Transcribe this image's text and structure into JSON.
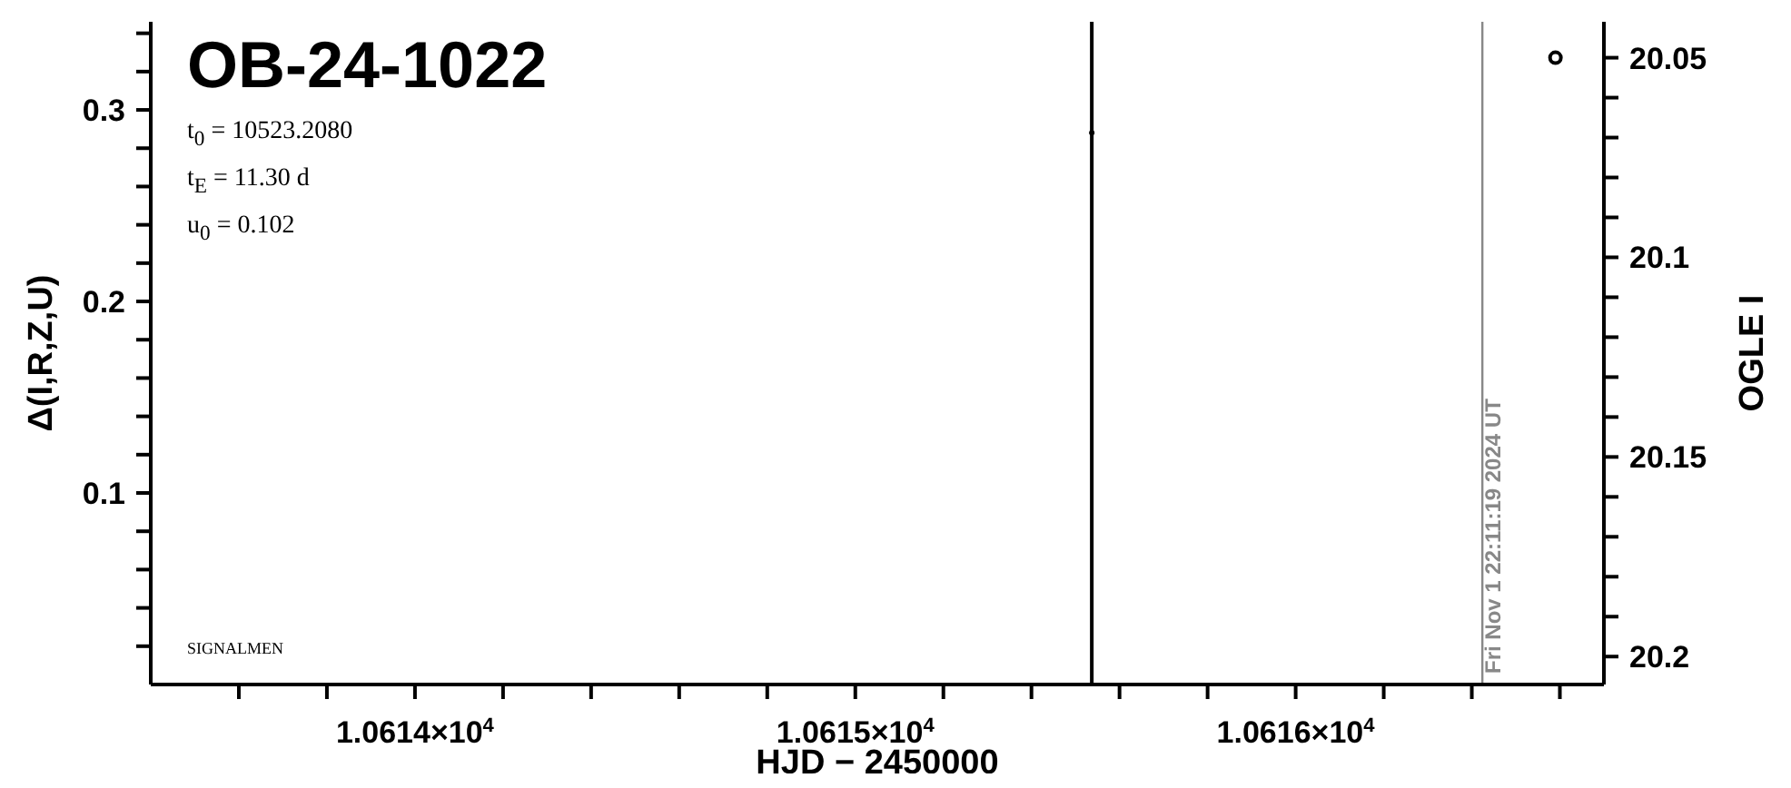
{
  "chart_data": {
    "type": "scatter",
    "title": "OB-24-1022",
    "xlabel": "HJD − 2450000",
    "ylabel": "Δ(I,R,Z,U)",
    "y2label": "OGLE I",
    "annotations": [
      "t$_{0}$ = 10523.2080",
      "t$_{E}$ = 11.30 d",
      "u$_{0}$ = 0.102",
      "SIGNALMEN",
      {
        "text": "Fri Nov  1 22:11:19 2024 UT",
        "x": 10616.424
      }
    ],
    "marker": "circle",
    "series": [
      {
        "color": "#000000",
        "x": [
          10615.537
        ],
        "values": [
          0.288
        ]
      },
      {
        "color": "#000000",
        "axis": "y2",
        "x": [
          10616.59
        ],
        "values": [
          20.05
        ]
      }
    ],
    "xlim": [
      10613.4,
      10616.7
    ],
    "xticks": [
      {
        "value": 10613.6,
        "label": null
      },
      {
        "value": 10613.8,
        "label": null
      },
      {
        "value": 10614,
        "label": "1.0614×10$^{4}$"
      },
      {
        "value": 10614.2,
        "label": null
      },
      {
        "value": 10614.4,
        "label": null
      },
      {
        "value": 10614.6,
        "label": null
      },
      {
        "value": 10614.8,
        "label": null
      },
      {
        "value": 10615,
        "label": "1.0615×10$^{4}$"
      },
      {
        "value": 10615.2,
        "label": null
      },
      {
        "value": 10615.4,
        "label": null
      },
      {
        "value": 10615.6,
        "label": null
      },
      {
        "value": 10615.8,
        "label": null
      },
      {
        "value": 10616,
        "label": "1.0616×10$^{4}$"
      },
      {
        "value": 10616.2,
        "label": null
      },
      {
        "value": 10616.4,
        "label": null
      },
      {
        "value": 10616.6,
        "label": null
      }
    ],
    "ylim": [
      0,
      0.346
    ],
    "yticks": [
      {
        "value": 0.02,
        "label": null
      },
      {
        "value": 0.04,
        "label": null
      },
      {
        "value": 0.06,
        "label": null
      },
      {
        "value": 0.08,
        "label": null
      },
      0.1,
      {
        "value": 0.12,
        "label": null
      },
      {
        "value": 0.14,
        "label": null
      },
      {
        "value": 0.16,
        "label": null
      },
      {
        "value": 0.18,
        "label": null
      },
      0.2,
      {
        "value": 0.22,
        "label": null
      },
      {
        "value": 0.24,
        "label": null
      },
      {
        "value": 0.26,
        "label": null
      },
      {
        "value": 0.28,
        "label": null
      },
      0.3,
      {
        "value": 0.32,
        "label": null
      },
      {
        "value": 0.34,
        "label": null
      }
    ],
    "y2lim": [
      20.207,
      20.041
    ],
    "y2ticks": [
      20.05,
      {
        "value": 20.06,
        "label": null
      },
      {
        "value": 20.07,
        "label": null
      },
      {
        "value": 20.08,
        "label": null
      },
      {
        "value": 20.09,
        "label": null
      },
      20.1,
      {
        "value": 20.11,
        "label": null
      },
      {
        "value": 20.12,
        "label": null
      },
      {
        "value": 20.13,
        "label": null
      },
      {
        "value": 20.14,
        "label": null
      },
      20.15,
      {
        "value": 20.16,
        "label": null
      },
      {
        "value": 20.17,
        "label": null
      },
      {
        "value": 20.18,
        "label": null
      },
      {
        "value": 20.19,
        "label": null
      },
      20.2
    ],
    "ref_lines": [
      {
        "axis": "x",
        "value": 10615.537,
        "color": "#000000"
      },
      {
        "axis": "x",
        "value": 10616.424,
        "color": "#888888"
      }
    ]
  }
}
